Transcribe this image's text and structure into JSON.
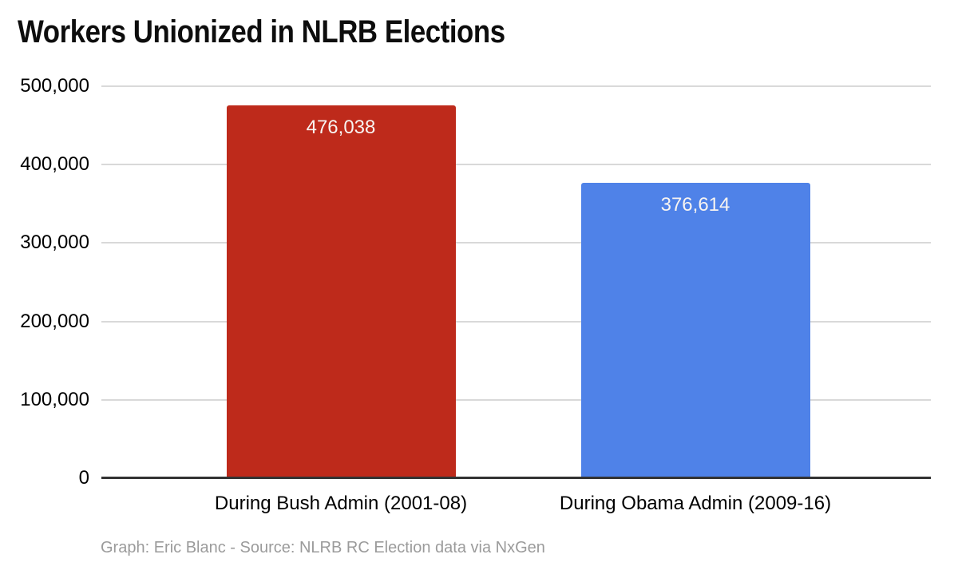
{
  "page": {
    "title": "Workers Unionized in NLRB Elections",
    "footnote": "Graph: Eric Blanc - Source: NLRB RC Election data via NxGen"
  },
  "chart_data": {
    "type": "bar",
    "title": "Workers Unionized in NLRB Elections",
    "categories": [
      "During Bush Admin (2001-08)",
      "During Obama Admin (2009-16)"
    ],
    "values": [
      476038,
      376614
    ],
    "value_labels": [
      "476,038",
      "376,614"
    ],
    "bar_colors": [
      "#be2a1b",
      "#4f82e8"
    ],
    "xlabel": "",
    "ylabel": "",
    "ylim": [
      0,
      500000
    ],
    "yticks": [
      {
        "value": 0,
        "label": "0"
      },
      {
        "value": 100000,
        "label": "100,000"
      },
      {
        "value": 200000,
        "label": "200,000"
      },
      {
        "value": 300000,
        "label": "300,000"
      },
      {
        "value": 400000,
        "label": "400,000"
      },
      {
        "value": 500000,
        "label": "500,000"
      }
    ],
    "grid": true,
    "legend_position": "none",
    "annotations": [],
    "footnote": "Graph: Eric Blanc - Source: NLRB RC Election data via NxGen",
    "colors": {
      "grid_line": "#d9d9d9",
      "axis_line": "#333333",
      "bar_label_text": "#f8f4f1",
      "tick_text": "#000000",
      "footnote_text": "#9b9b9b",
      "title_text": "#0d0d0d",
      "background": "#ffffff"
    }
  }
}
